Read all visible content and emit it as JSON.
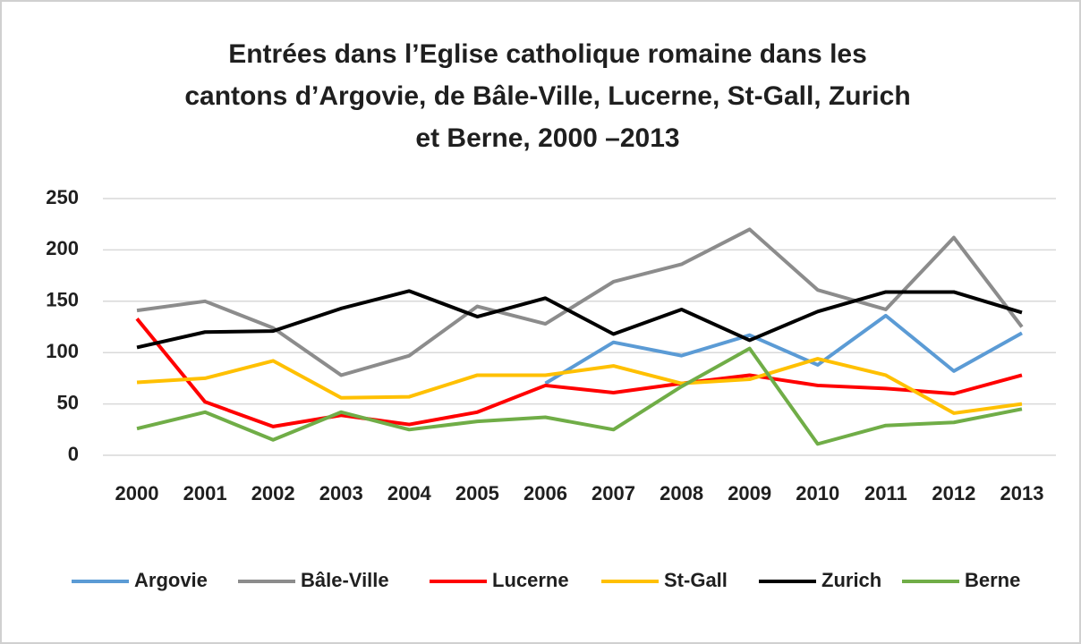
{
  "chart_data": {
    "type": "line",
    "title": [
      "Entrées dans l’Eglise catholique romaine dans les",
      "cantons d’Argovie, de Bâle-Ville, Lucerne, St-Gall, Zurich",
      "et Berne, 2000 –2013"
    ],
    "categories": [
      "2000",
      "2001",
      "2002",
      "2003",
      "2004",
      "2005",
      "2006",
      "2007",
      "2008",
      "2009",
      "2010",
      "2011",
      "2012",
      "2013"
    ],
    "series": [
      {
        "name": "Argovie",
        "color": "#5b9bd5",
        "values": [
          null,
          null,
          null,
          null,
          null,
          null,
          70,
          110,
          97,
          117,
          88,
          136,
          82,
          119
        ]
      },
      {
        "name": "Bâle-Ville",
        "color": "#8c8c8c",
        "values": [
          141,
          150,
          124,
          78,
          97,
          145,
          128,
          169,
          186,
          220,
          161,
          142,
          212,
          125
        ]
      },
      {
        "name": "Lucerne",
        "color": "#ff0000",
        "values": [
          133,
          52,
          28,
          39,
          30,
          42,
          68,
          61,
          70,
          78,
          68,
          65,
          60,
          78
        ]
      },
      {
        "name": "St-Gall",
        "color": "#ffc000",
        "values": [
          71,
          75,
          92,
          56,
          57,
          78,
          78,
          87,
          70,
          74,
          94,
          78,
          41,
          50
        ]
      },
      {
        "name": "Zurich",
        "color": "#000000",
        "values": [
          105,
          120,
          121,
          143,
          160,
          135,
          153,
          118,
          142,
          112,
          140,
          159,
          159,
          139
        ]
      },
      {
        "name": "Berne",
        "color": "#70ad47",
        "values": [
          26,
          42,
          15,
          42,
          25,
          33,
          37,
          25,
          67,
          104,
          11,
          29,
          32,
          45
        ]
      }
    ],
    "ylim": [
      0,
      250
    ],
    "yticks": [
      0,
      50,
      100,
      150,
      200,
      250
    ],
    "grid": true
  }
}
